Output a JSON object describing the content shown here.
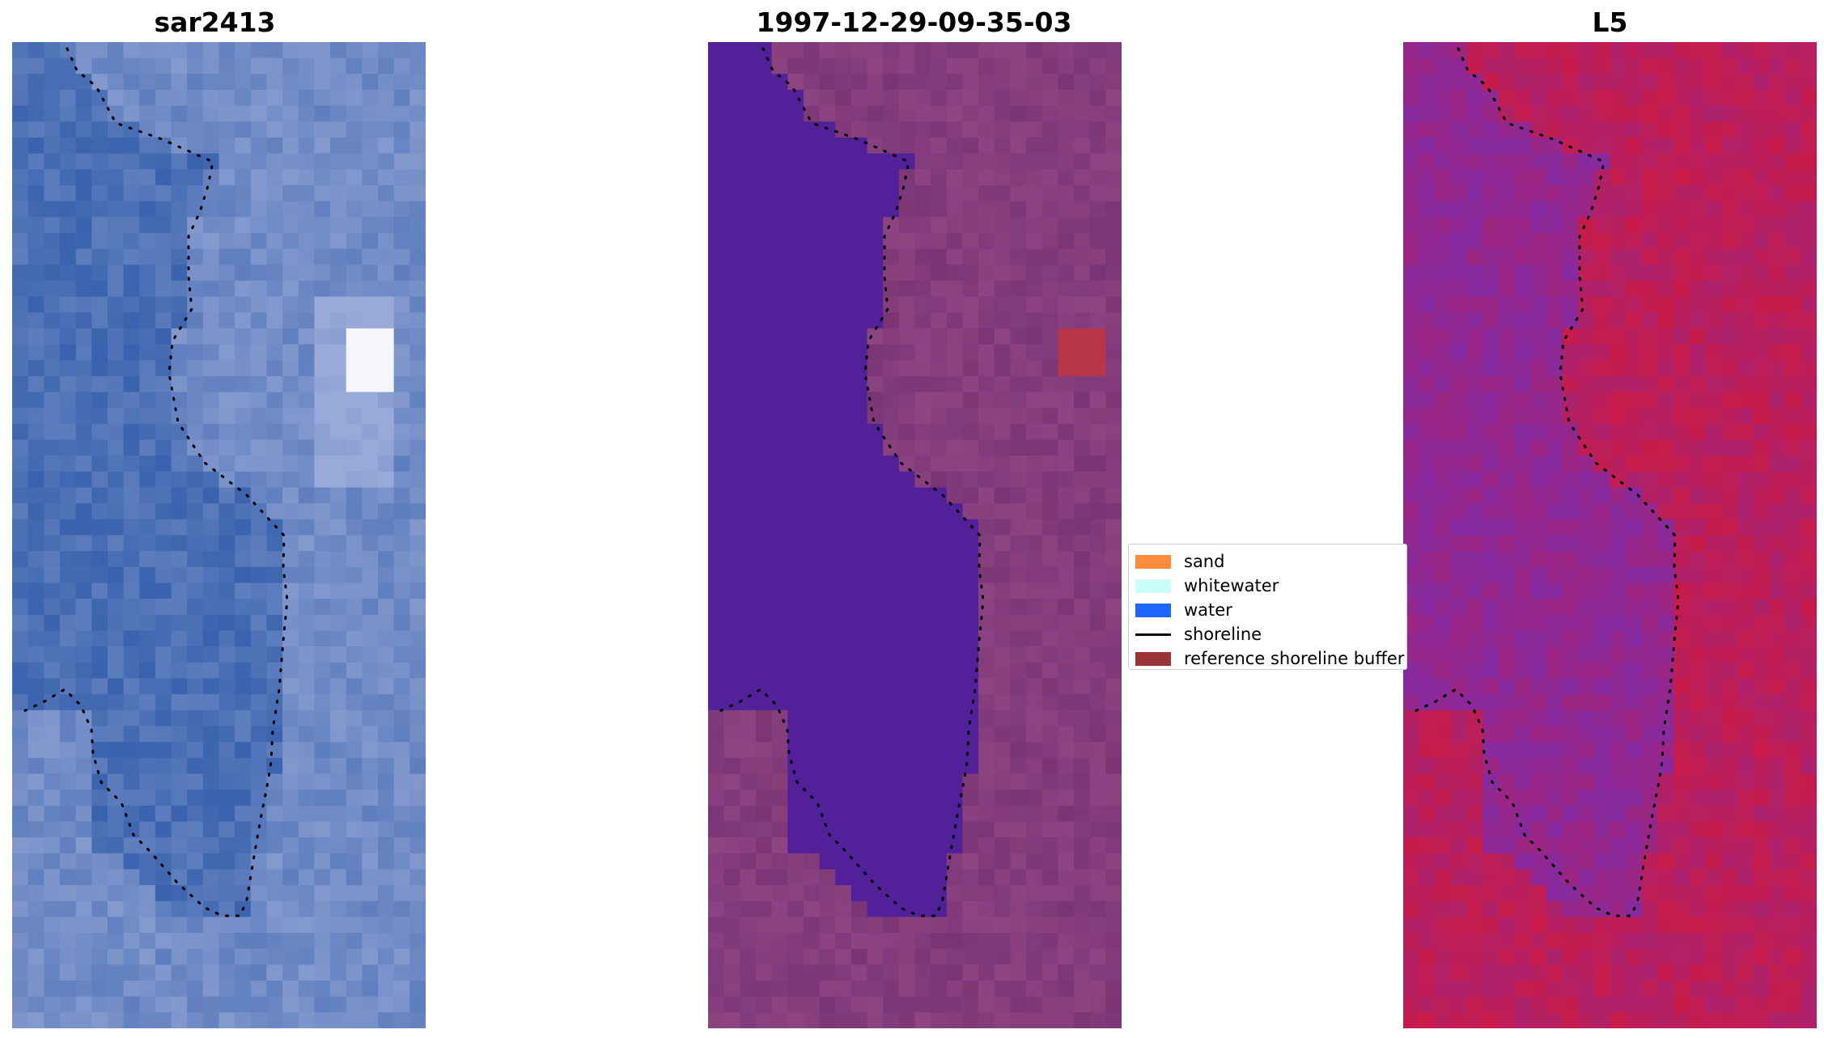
{
  "panels": [
    {
      "title": "sar2413"
    },
    {
      "title": "1997-12-29-09-35-03"
    },
    {
      "title": "L5"
    }
  ],
  "legend": {
    "items": [
      {
        "label": "sand",
        "color": "#ff8c3c",
        "kind": "patch"
      },
      {
        "label": "whitewater",
        "color": "#c8fffa",
        "kind": "patch"
      },
      {
        "label": "water",
        "color": "#1e64ff",
        "kind": "patch"
      },
      {
        "label": "shoreline",
        "color": "#000000",
        "kind": "line"
      },
      {
        "label": "reference shoreline buffer",
        "color": "#9b3339",
        "kind": "patch"
      }
    ]
  },
  "colors": {
    "rgb_water": "#2f5aa8",
    "rgb_cloud": "#9aaad8",
    "class_water": "#52219a",
    "class_land": "#7b3575",
    "class_buffer": "#b8364a",
    "index_low": "#7a2db0",
    "index_high": "#c81c4a"
  }
}
